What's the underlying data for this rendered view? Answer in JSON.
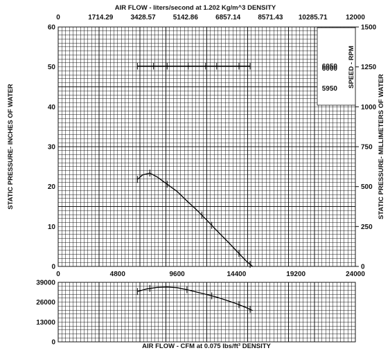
{
  "chart_data": [
    {
      "type": "line",
      "title": "",
      "top_axis_label": "AIR FLOW - liters/second at   1.202 Kg/m^3   DENSITY",
      "top_ticks": [
        "0",
        "1714.29",
        "3428.57",
        "5142.86",
        "6857.14",
        "8571.43",
        "10285.71",
        "12000"
      ],
      "xlabel": "",
      "xlim": [
        0,
        24000
      ],
      "x_ticks": [
        "0",
        "4800",
        "9600",
        "14400",
        "19200",
        "24000"
      ],
      "ylabel": "STATIC PRESSURE- INCHES OF WATER",
      "ylim": [
        0,
        60
      ],
      "y_ticks": [
        "0",
        "10",
        "20",
        "30",
        "40",
        "50",
        "60"
      ],
      "y2label": "STATIC PRESSURE- MILLIMETERS OF WATER",
      "y2lim": [
        0,
        1500
      ],
      "y2_ticks": [
        "0",
        "250",
        "500",
        "750",
        "1000",
        "1250",
        "1500"
      ],
      "grid": true,
      "speed_label": "SPEED - RPM",
      "speed_values": [
        "6050",
        "6000",
        "5950"
      ],
      "speed_marker": {
        "y": 50.2,
        "x_start": 6400,
        "x_end": 15500,
        "ticks": [
          6400,
          7700,
          8800,
          10500,
          11900,
          12800,
          14600,
          15500
        ]
      },
      "series": [
        {
          "x": [
            6400,
            6800,
            7400,
            8000,
            8800,
            9600,
            10400,
            11200,
            12000,
            12800,
            13600,
            14400,
            15200,
            15700
          ],
          "y": [
            21.8,
            22.9,
            23.4,
            22.4,
            20.6,
            18.8,
            16.4,
            14.1,
            11.6,
            9.0,
            6.5,
            3.9,
            1.3,
            0
          ],
          "tick_marks": [
            6400,
            7400,
            8800,
            11600,
            12400,
            14600,
            15500
          ]
        }
      ]
    },
    {
      "type": "line",
      "title": "",
      "xlabel": "AIR FLOW - CFM at 0.075 lbs/ft³ DENSITY",
      "xlim": [
        0,
        24000
      ],
      "ylabel": "",
      "ylim": [
        0,
        39000
      ],
      "y_ticks": [
        "0",
        "13000",
        "26000",
        "39000"
      ],
      "grid": true,
      "series": [
        {
          "x": [
            6400,
            7200,
            8000,
            8800,
            9600,
            10400,
            11200,
            12000,
            12800,
            13600,
            14400,
            15200,
            15700
          ],
          "y": [
            33000,
            34800,
            35700,
            35900,
            35500,
            34200,
            32600,
            31000,
            29300,
            27200,
            25000,
            22400,
            20500
          ],
          "tick_marks": [
            6400,
            7400,
            10400,
            12400,
            14600,
            15500
          ]
        }
      ]
    }
  ]
}
